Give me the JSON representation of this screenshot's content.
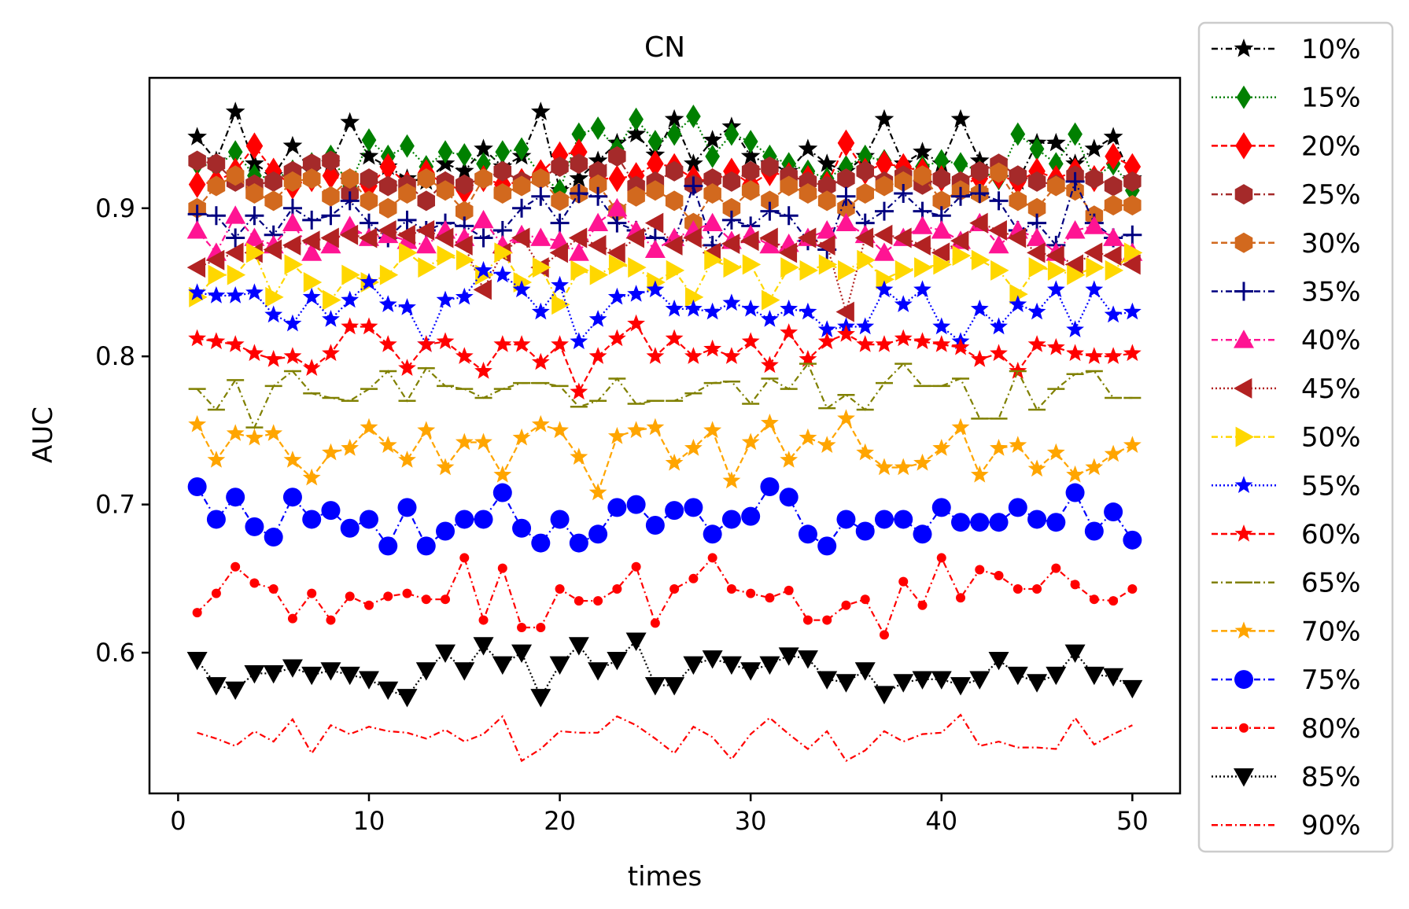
{
  "chart_data": {
    "type": "line",
    "title": "CN",
    "xlabel": "times",
    "ylabel": "AUC",
    "xlim": [
      -1.5,
      52.5
    ],
    "ylim": [
      0.505,
      0.988
    ],
    "xticks": [
      0,
      10,
      20,
      30,
      40,
      50
    ],
    "xtick_labels": [
      "0",
      "10",
      "20",
      "30",
      "40",
      "50"
    ],
    "yticks": [
      0.6,
      0.7,
      0.8,
      0.9
    ],
    "ytick_labels": [
      "0.6",
      "0.7",
      "0.8",
      "0.9"
    ],
    "legend_position": "outside-right",
    "x": [
      1,
      2,
      3,
      4,
      5,
      6,
      7,
      8,
      9,
      10,
      11,
      12,
      13,
      14,
      15,
      16,
      17,
      18,
      19,
      20,
      21,
      22,
      23,
      24,
      25,
      26,
      27,
      28,
      29,
      30,
      31,
      32,
      33,
      34,
      35,
      36,
      37,
      38,
      39,
      40,
      41,
      42,
      43,
      44,
      45,
      46,
      47,
      48,
      49,
      50
    ],
    "series": [
      {
        "name": "10%",
        "color": "#000000",
        "dash": "8,4,2,4",
        "marker": "star",
        "msize": 13,
        "values": [
          0.948,
          0.932,
          0.965,
          0.93,
          0.922,
          0.942,
          0.925,
          0.93,
          0.958,
          0.935,
          0.928,
          0.92,
          0.918,
          0.93,
          0.925,
          0.94,
          0.928,
          0.935,
          0.965,
          0.912,
          0.92,
          0.932,
          0.944,
          0.95,
          0.936,
          0.96,
          0.93,
          0.946,
          0.955,
          0.935,
          0.93,
          0.925,
          0.94,
          0.93,
          0.925,
          0.935,
          0.96,
          0.93,
          0.938,
          0.93,
          0.96,
          0.932,
          0.925,
          0.918,
          0.944,
          0.944,
          0.93,
          0.94,
          0.948,
          0.92
        ]
      },
      {
        "name": "15%",
        "color": "#008000",
        "dash": "2,3",
        "marker": "diamond",
        "msize": 13,
        "values": [
          0.93,
          0.928,
          0.938,
          0.922,
          0.92,
          0.925,
          0.93,
          0.935,
          0.915,
          0.946,
          0.935,
          0.942,
          0.928,
          0.938,
          0.936,
          0.93,
          0.938,
          0.94,
          0.922,
          0.912,
          0.95,
          0.954,
          0.94,
          0.96,
          0.945,
          0.95,
          0.962,
          0.935,
          0.95,
          0.945,
          0.935,
          0.93,
          0.925,
          0.92,
          0.928,
          0.935,
          0.932,
          0.925,
          0.928,
          0.932,
          0.93,
          0.925,
          0.92,
          0.95,
          0.94,
          0.93,
          0.95,
          0.92,
          0.93,
          0.912
        ]
      },
      {
        "name": "20%",
        "color": "#ff0000",
        "dash": "8,4",
        "marker": "diamond",
        "msize": 15,
        "values": [
          0.916,
          0.918,
          0.925,
          0.942,
          0.925,
          0.915,
          0.92,
          0.922,
          0.918,
          0.915,
          0.928,
          0.916,
          0.924,
          0.916,
          0.912,
          0.92,
          0.916,
          0.918,
          0.924,
          0.936,
          0.938,
          0.92,
          0.92,
          0.922,
          0.93,
          0.928,
          0.92,
          0.918,
          0.925,
          0.916,
          0.924,
          0.922,
          0.92,
          0.916,
          0.944,
          0.925,
          0.93,
          0.928,
          0.925,
          0.92,
          0.916,
          0.92,
          0.922,
          0.918,
          0.925,
          0.92,
          0.925,
          0.92,
          0.935,
          0.928
        ]
      },
      {
        "name": "25%",
        "color": "#a52a2a",
        "dash": "8,4,2,4",
        "marker": "hexagon",
        "msize": 13,
        "values": [
          0.932,
          0.93,
          0.918,
          0.916,
          0.918,
          0.925,
          0.93,
          0.932,
          0.91,
          0.92,
          0.915,
          0.916,
          0.905,
          0.918,
          0.916,
          0.92,
          0.925,
          0.918,
          0.92,
          0.928,
          0.93,
          0.925,
          0.935,
          0.915,
          0.918,
          0.925,
          0.916,
          0.92,
          0.918,
          0.925,
          0.928,
          0.922,
          0.918,
          0.915,
          0.92,
          0.925,
          0.918,
          0.922,
          0.916,
          0.92,
          0.918,
          0.925,
          0.93,
          0.922,
          0.918,
          0.916,
          0.922,
          0.92,
          0.915,
          0.918
        ]
      },
      {
        "name": "30%",
        "color": "#d2691e",
        "dash": "8,4",
        "marker": "hexagon",
        "msize": 13,
        "values": [
          0.9,
          0.915,
          0.922,
          0.91,
          0.905,
          0.918,
          0.92,
          0.908,
          0.92,
          0.905,
          0.9,
          0.91,
          0.92,
          0.912,
          0.898,
          0.92,
          0.91,
          0.915,
          0.92,
          0.905,
          0.91,
          0.916,
          0.898,
          0.908,
          0.912,
          0.905,
          0.89,
          0.91,
          0.9,
          0.912,
          0.905,
          0.915,
          0.91,
          0.905,
          0.9,
          0.91,
          0.915,
          0.918,
          0.922,
          0.905,
          0.912,
          0.91,
          0.924,
          0.905,
          0.9,
          0.915,
          0.912,
          0.895,
          0.902,
          0.902
        ]
      },
      {
        "name": "35%",
        "color": "#000080",
        "dash": "8,4,2,4",
        "marker": "plus",
        "msize": 12,
        "values": [
          0.896,
          0.895,
          0.88,
          0.895,
          0.882,
          0.9,
          0.892,
          0.895,
          0.905,
          0.89,
          0.88,
          0.892,
          0.885,
          0.89,
          0.888,
          0.88,
          0.885,
          0.9,
          0.908,
          0.89,
          0.91,
          0.908,
          0.89,
          0.885,
          0.88,
          0.878,
          0.915,
          0.875,
          0.892,
          0.888,
          0.898,
          0.895,
          0.878,
          0.872,
          0.908,
          0.89,
          0.898,
          0.91,
          0.898,
          0.895,
          0.908,
          0.91,
          0.905,
          0.885,
          0.89,
          0.875,
          0.918,
          0.89,
          0.88,
          0.882
        ]
      },
      {
        "name": "40%",
        "color": "#ff1493",
        "dash": "8,4,2,4",
        "marker": "triangle-up",
        "msize": 13,
        "values": [
          0.885,
          0.87,
          0.895,
          0.88,
          0.875,
          0.89,
          0.87,
          0.875,
          0.888,
          0.88,
          0.882,
          0.878,
          0.875,
          0.885,
          0.88,
          0.892,
          0.875,
          0.882,
          0.88,
          0.878,
          0.87,
          0.89,
          0.9,
          0.885,
          0.872,
          0.88,
          0.885,
          0.89,
          0.878,
          0.882,
          0.875,
          0.876,
          0.88,
          0.885,
          0.89,
          0.882,
          0.87,
          0.88,
          0.888,
          0.885,
          0.878,
          0.89,
          0.875,
          0.885,
          0.88,
          0.87,
          0.885,
          0.888,
          0.88,
          0.87
        ]
      },
      {
        "name": "45%",
        "color": "#b22222",
        "dash": "2,3",
        "marker": "triangle-left",
        "msize": 13,
        "values": [
          0.86,
          0.865,
          0.87,
          0.87,
          0.872,
          0.875,
          0.878,
          0.88,
          0.882,
          0.88,
          0.885,
          0.882,
          0.885,
          0.88,
          0.875,
          0.845,
          0.87,
          0.88,
          0.86,
          0.87,
          0.88,
          0.875,
          0.87,
          0.88,
          0.89,
          0.875,
          0.88,
          0.87,
          0.876,
          0.878,
          0.88,
          0.87,
          0.88,
          0.875,
          0.83,
          0.88,
          0.882,
          0.88,
          0.875,
          0.87,
          0.878,
          0.89,
          0.885,
          0.88,
          0.87,
          0.868,
          0.862,
          0.87,
          0.868,
          0.862
        ]
      },
      {
        "name": "50%",
        "color": "#ffd700",
        "dash": "8,4,2,4",
        "marker": "triangle-right",
        "msize": 13,
        "values": [
          0.84,
          0.855,
          0.855,
          0.87,
          0.84,
          0.862,
          0.85,
          0.838,
          0.855,
          0.85,
          0.855,
          0.87,
          0.86,
          0.868,
          0.865,
          0.855,
          0.87,
          0.85,
          0.86,
          0.835,
          0.858,
          0.855,
          0.862,
          0.86,
          0.85,
          0.858,
          0.84,
          0.865,
          0.86,
          0.862,
          0.838,
          0.86,
          0.858,
          0.862,
          0.858,
          0.865,
          0.852,
          0.858,
          0.86,
          0.862,
          0.868,
          0.865,
          0.858,
          0.842,
          0.86,
          0.858,
          0.855,
          0.86,
          0.858,
          0.87
        ]
      },
      {
        "name": "55%",
        "color": "#0000ff",
        "dash": "2,3",
        "marker": "star",
        "msize": 12,
        "values": [
          0.843,
          0.841,
          0.841,
          0.843,
          0.828,
          0.822,
          0.84,
          0.825,
          0.838,
          0.85,
          0.835,
          0.833,
          0.808,
          0.838,
          0.84,
          0.858,
          0.855,
          0.845,
          0.83,
          0.848,
          0.81,
          0.825,
          0.84,
          0.842,
          0.845,
          0.832,
          0.832,
          0.83,
          0.836,
          0.832,
          0.825,
          0.832,
          0.83,
          0.818,
          0.82,
          0.82,
          0.845,
          0.835,
          0.845,
          0.82,
          0.81,
          0.832,
          0.82,
          0.835,
          0.83,
          0.845,
          0.818,
          0.845,
          0.828,
          0.83
        ]
      },
      {
        "name": "60%",
        "color": "#ff0000",
        "dash": "8,4",
        "marker": "star",
        "msize": 12,
        "values": [
          0.812,
          0.81,
          0.808,
          0.802,
          0.798,
          0.8,
          0.792,
          0.802,
          0.82,
          0.82,
          0.808,
          0.792,
          0.808,
          0.81,
          0.8,
          0.79,
          0.808,
          0.808,
          0.796,
          0.808,
          0.776,
          0.8,
          0.812,
          0.822,
          0.8,
          0.812,
          0.8,
          0.805,
          0.8,
          0.81,
          0.794,
          0.816,
          0.798,
          0.81,
          0.815,
          0.808,
          0.808,
          0.812,
          0.81,
          0.808,
          0.806,
          0.798,
          0.802,
          0.79,
          0.808,
          0.806,
          0.802,
          0.8,
          0.8,
          0.802
        ]
      },
      {
        "name": "65%",
        "color": "#808000",
        "dash": "8,4,2,4",
        "marker": "hline",
        "msize": 11,
        "values": [
          0.778,
          0.764,
          0.784,
          0.752,
          0.78,
          0.79,
          0.775,
          0.772,
          0.77,
          0.778,
          0.79,
          0.77,
          0.792,
          0.78,
          0.778,
          0.772,
          0.778,
          0.782,
          0.782,
          0.78,
          0.766,
          0.77,
          0.785,
          0.768,
          0.77,
          0.77,
          0.775,
          0.782,
          0.783,
          0.768,
          0.785,
          0.778,
          0.795,
          0.765,
          0.774,
          0.764,
          0.782,
          0.795,
          0.78,
          0.78,
          0.785,
          0.758,
          0.758,
          0.79,
          0.764,
          0.778,
          0.788,
          0.79,
          0.772,
          0.772
        ]
      },
      {
        "name": "70%",
        "color": "#ffa500",
        "dash": "8,4",
        "marker": "star",
        "msize": 12,
        "values": [
          0.754,
          0.73,
          0.748,
          0.745,
          0.748,
          0.73,
          0.718,
          0.735,
          0.738,
          0.752,
          0.74,
          0.73,
          0.75,
          0.725,
          0.742,
          0.742,
          0.72,
          0.745,
          0.754,
          0.75,
          0.732,
          0.708,
          0.746,
          0.75,
          0.752,
          0.728,
          0.738,
          0.75,
          0.716,
          0.742,
          0.755,
          0.73,
          0.745,
          0.74,
          0.758,
          0.735,
          0.725,
          0.725,
          0.728,
          0.738,
          0.752,
          0.72,
          0.738,
          0.74,
          0.724,
          0.735,
          0.72,
          0.725,
          0.734,
          0.74
        ]
      },
      {
        "name": "75%",
        "color": "#0000ff",
        "dash": "8,4,2,4",
        "marker": "circle",
        "msize": 12,
        "values": [
          0.712,
          0.69,
          0.705,
          0.685,
          0.678,
          0.705,
          0.69,
          0.696,
          0.684,
          0.69,
          0.672,
          0.698,
          0.672,
          0.682,
          0.69,
          0.69,
          0.708,
          0.684,
          0.674,
          0.69,
          0.674,
          0.68,
          0.698,
          0.7,
          0.686,
          0.696,
          0.698,
          0.68,
          0.69,
          0.692,
          0.712,
          0.705,
          0.68,
          0.672,
          0.69,
          0.682,
          0.69,
          0.69,
          0.68,
          0.698,
          0.688,
          0.688,
          0.688,
          0.698,
          0.69,
          0.688,
          0.708,
          0.682,
          0.695,
          0.676
        ]
      },
      {
        "name": "80%",
        "color": "#ff0000",
        "dash": "8,4,2,4",
        "marker": "dot",
        "msize": 6,
        "values": [
          0.627,
          0.64,
          0.658,
          0.647,
          0.643,
          0.623,
          0.64,
          0.622,
          0.638,
          0.632,
          0.638,
          0.64,
          0.636,
          0.636,
          0.664,
          0.622,
          0.657,
          0.617,
          0.617,
          0.643,
          0.635,
          0.635,
          0.643,
          0.658,
          0.62,
          0.643,
          0.65,
          0.664,
          0.643,
          0.64,
          0.637,
          0.642,
          0.622,
          0.622,
          0.632,
          0.636,
          0.612,
          0.648,
          0.632,
          0.664,
          0.637,
          0.656,
          0.652,
          0.643,
          0.643,
          0.657,
          0.646,
          0.636,
          0.635,
          0.643
        ]
      },
      {
        "name": "85%",
        "color": "#000000",
        "dash": "2,3",
        "marker": "triangle-down",
        "msize": 13,
        "values": [
          0.595,
          0.578,
          0.575,
          0.586,
          0.586,
          0.59,
          0.585,
          0.588,
          0.585,
          0.582,
          0.575,
          0.57,
          0.588,
          0.6,
          0.588,
          0.605,
          0.592,
          0.6,
          0.57,
          0.592,
          0.605,
          0.588,
          0.595,
          0.608,
          0.578,
          0.578,
          0.592,
          0.596,
          0.592,
          0.588,
          0.592,
          0.598,
          0.596,
          0.582,
          0.58,
          0.588,
          0.572,
          0.58,
          0.582,
          0.582,
          0.578,
          0.582,
          0.595,
          0.585,
          0.58,
          0.585,
          0.6,
          0.585,
          0.584,
          0.576
        ]
      },
      {
        "name": "90%",
        "color": "#ff0000",
        "dash": "8,4,2,4",
        "marker": "none",
        "msize": 0,
        "values": [
          0.546,
          0.542,
          0.537,
          0.547,
          0.54,
          0.555,
          0.532,
          0.551,
          0.545,
          0.55,
          0.547,
          0.546,
          0.542,
          0.548,
          0.54,
          0.545,
          0.557,
          0.527,
          0.535,
          0.547,
          0.546,
          0.546,
          0.557,
          0.551,
          0.542,
          0.532,
          0.55,
          0.543,
          0.528,
          0.545,
          0.556,
          0.545,
          0.535,
          0.547,
          0.527,
          0.534,
          0.547,
          0.54,
          0.545,
          0.546,
          0.558,
          0.537,
          0.54,
          0.536,
          0.536,
          0.535,
          0.556,
          0.538,
          0.545,
          0.551
        ]
      }
    ]
  }
}
